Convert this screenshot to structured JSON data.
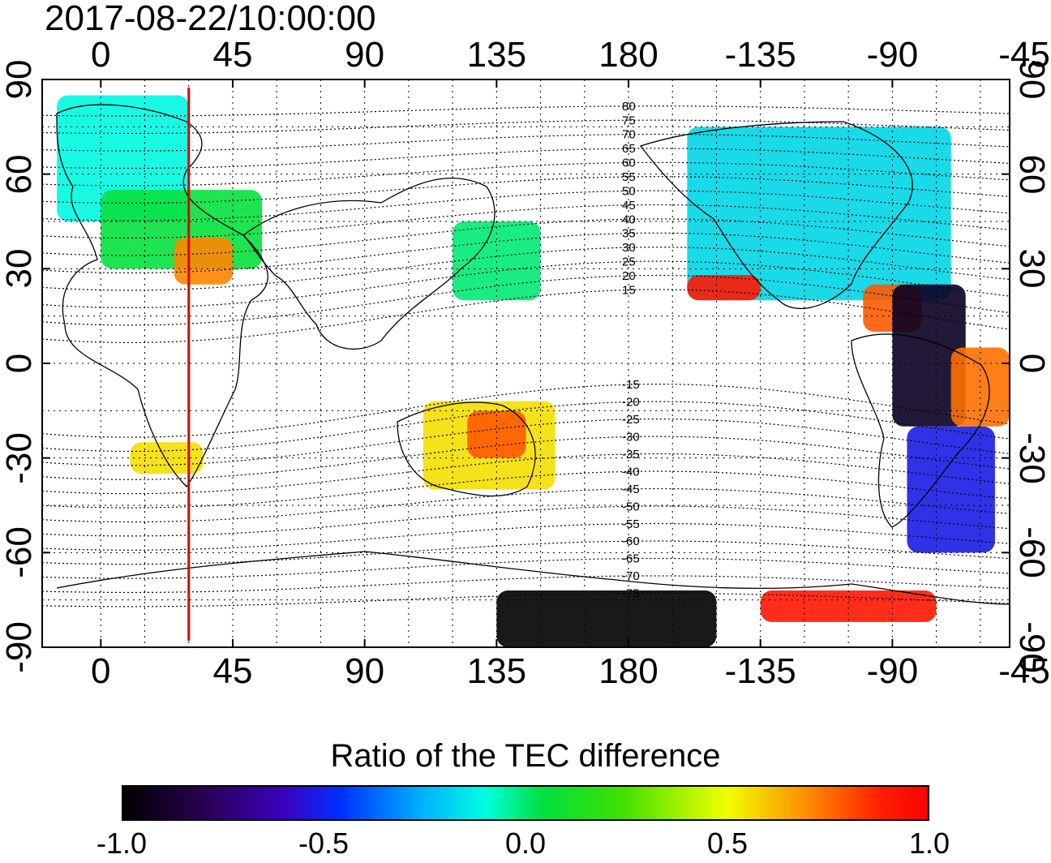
{
  "title": "2017-08-22/10:00:00",
  "x_ticks_top": [
    "0",
    "45",
    "90",
    "135",
    "180",
    "-135",
    "-90",
    "-45"
  ],
  "x_ticks_bottom": [
    "0",
    "45",
    "90",
    "135",
    "180",
    "-135",
    "-90",
    "-45"
  ],
  "y_ticks_left": [
    "90",
    "60",
    "30",
    "0",
    "-30",
    "-60",
    "-90"
  ],
  "y_ticks_right": [
    "90",
    "60",
    "30",
    "0",
    "-30",
    "-60",
    "-90"
  ],
  "contour_labels": [
    "80",
    "75",
    "70",
    "65",
    "60",
    "55",
    "50",
    "45",
    "40",
    "35",
    "30",
    "25",
    "20",
    "15",
    "-15",
    "-20",
    "-25",
    "-30",
    "-35",
    "-40",
    "-45",
    "-50",
    "-55",
    "-60",
    "-65",
    "-70",
    "-75"
  ],
  "colorbar": {
    "title": "Ratio of the TEC difference",
    "ticks": [
      "-1.0",
      "-0.5",
      "0.0",
      "0.5",
      "1.0"
    ],
    "range": [
      -1.0,
      1.0
    ],
    "colors": [
      "#000000",
      "#3a00c0",
      "#0030ff",
      "#00ffe0",
      "#00e040",
      "#f0ff00",
      "#ff8000",
      "#ff0000"
    ]
  },
  "chart_data": {
    "type": "heatmap",
    "title": "2017-08-22/10:00:00",
    "x_domain_longitude": [
      -20,
      310
    ],
    "y_domain_latitude": [
      -90,
      90
    ],
    "x_ticks": [
      0,
      45,
      90,
      135,
      180,
      225,
      270,
      315
    ],
    "y_ticks": [
      90,
      60,
      30,
      0,
      -30,
      -60,
      -90
    ],
    "grid": true,
    "terminator_longitude": 30,
    "terminator_color": "#ff0000",
    "value_range": [
      -1.0,
      1.0
    ],
    "regions": [
      {
        "lon": [
          -15,
          30
        ],
        "lat": [
          45,
          85
        ],
        "value": -0.15
      },
      {
        "lon": [
          0,
          55
        ],
        "lat": [
          30,
          55
        ],
        "value": 0.15
      },
      {
        "lon": [
          25,
          45
        ],
        "lat": [
          25,
          40
        ],
        "value": 0.7
      },
      {
        "lon": [
          10,
          35
        ],
        "lat": [
          -35,
          -25
        ],
        "value": 0.5
      },
      {
        "lon": [
          110,
          155
        ],
        "lat": [
          -40,
          -12
        ],
        "value": 0.5
      },
      {
        "lon": [
          125,
          145
        ],
        "lat": [
          -30,
          -15
        ],
        "value": 0.8
      },
      {
        "lon": [
          120,
          150
        ],
        "lat": [
          20,
          45
        ],
        "value": 0.05
      },
      {
        "lon": [
          200,
          290
        ],
        "lat": [
          20,
          75
        ],
        "value": -0.2
      },
      {
        "lon": [
          260,
          280
        ],
        "lat": [
          10,
          25
        ],
        "value": 0.8
      },
      {
        "lon": [
          270,
          295
        ],
        "lat": [
          -20,
          25
        ],
        "value": -0.95
      },
      {
        "lon": [
          275,
          305
        ],
        "lat": [
          -60,
          -20
        ],
        "value": -0.55
      },
      {
        "lon": [
          290,
          330
        ],
        "lat": [
          -20,
          5
        ],
        "value": 0.75
      },
      {
        "lon": [
          135,
          210
        ],
        "lat": [
          -90,
          -72
        ],
        "value": -1.0
      },
      {
        "lon": [
          225,
          285
        ],
        "lat": [
          -82,
          -72
        ],
        "value": 0.95
      },
      {
        "lon": [
          200,
          225
        ],
        "lat": [
          20,
          28
        ],
        "value": 0.95
      }
    ]
  }
}
